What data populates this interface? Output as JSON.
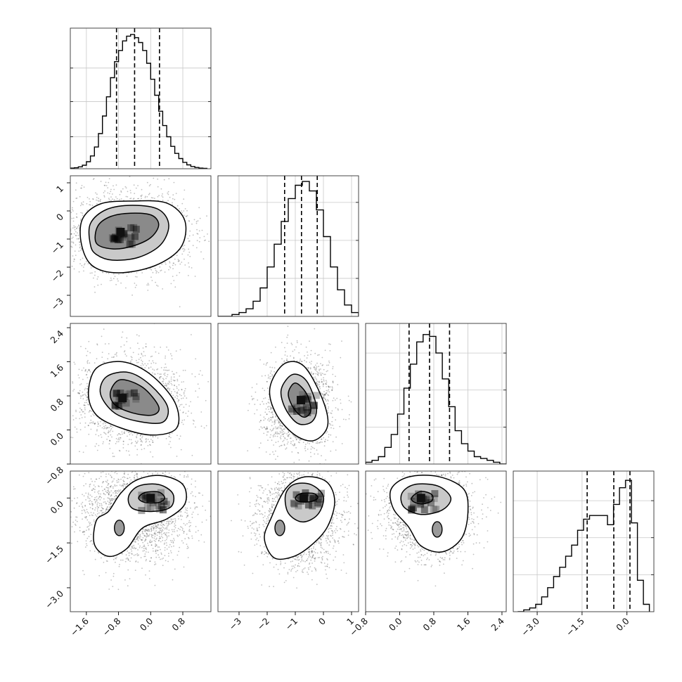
{
  "chart_data": {
    "type": "corner",
    "title": "",
    "parameters": [
      {
        "range": [
          -2.0,
          1.5
        ],
        "ticks": [
          -1.6,
          -0.8,
          0.0,
          0.8
        ],
        "tick_labels": [
          "−1.6",
          "−0.8",
          "0.0",
          "0.8"
        ],
        "quantiles": [
          -0.85,
          -0.4,
          0.22
        ],
        "hist_centers": [
          -1.95,
          -1.85,
          -1.75,
          -1.65,
          -1.55,
          -1.45,
          -1.35,
          -1.25,
          -1.15,
          -1.05,
          -0.95,
          -0.85,
          -0.75,
          -0.65,
          -0.55,
          -0.45,
          -0.35,
          -0.25,
          -0.15,
          -0.05,
          0.05,
          0.15,
          0.25,
          0.35,
          0.45,
          0.55,
          0.65,
          0.75,
          0.85,
          0.95,
          1.05,
          1.15,
          1.25,
          1.35
        ],
        "hist_values": [
          0.2,
          0.3,
          0.6,
          1.1,
          2.2,
          4.0,
          6.8,
          11.0,
          16.5,
          22.5,
          28.5,
          33.5,
          37.0,
          40.0,
          41.5,
          42.0,
          41.0,
          39.5,
          37.0,
          33.0,
          28.0,
          23.0,
          18.0,
          13.5,
          10.0,
          7.0,
          4.8,
          3.2,
          2.0,
          1.2,
          0.7,
          0.4,
          0.2,
          0.1
        ],
        "hist_ymax": 44,
        "hist_gridlines": [
          10,
          21,
          31.5
        ]
      },
      {
        "range": [
          -3.75,
          1.25
        ],
        "ticks": [
          -3,
          -2,
          -1,
          0,
          1
        ],
        "tick_labels": [
          "−3",
          "−2",
          "−1",
          "0",
          "1"
        ],
        "quantiles": [
          -1.38,
          -0.78,
          -0.22
        ],
        "hist_centers": [
          -3.625,
          -3.375,
          -3.125,
          -2.875,
          -2.625,
          -2.375,
          -2.125,
          -1.875,
          -1.625,
          -1.375,
          -1.125,
          -0.875,
          -0.625,
          -0.375,
          -0.125,
          0.125,
          0.375,
          0.625,
          0.875,
          1.125
        ],
        "hist_values": [
          0,
          0,
          0.5,
          1,
          2,
          4,
          7.5,
          13,
          19,
          25,
          31,
          34.5,
          35.5,
          33,
          28,
          21,
          13,
          7,
          3,
          1
        ],
        "hist_ymax": 37,
        "hist_gridlines": [
          10,
          20,
          30
        ]
      },
      {
        "range": [
          -0.8,
          2.5
        ],
        "ticks": [
          -0.8,
          0.0,
          0.8,
          1.6,
          2.4
        ],
        "tick_labels": [
          "−0.8",
          "0.0",
          "0.8",
          "1.6",
          "2.4"
        ],
        "quantiles": [
          0.22,
          0.7,
          1.17
        ],
        "hist_centers": [
          -0.725,
          -0.575,
          -0.425,
          -0.275,
          -0.125,
          0.025,
          0.175,
          0.325,
          0.475,
          0.625,
          0.775,
          0.925,
          1.075,
          1.225,
          1.375,
          1.525,
          1.675,
          1.825,
          1.975,
          2.125,
          2.275,
          2.425
        ],
        "hist_values": [
          0.5,
          1,
          2,
          4.5,
          8,
          13.5,
          20.5,
          27,
          33,
          35,
          34.5,
          30,
          23,
          15.5,
          9,
          5.5,
          3.5,
          2,
          1.5,
          1,
          0.5,
          0
        ],
        "hist_ymax": 38,
        "hist_gridlines": [
          10,
          20,
          30
        ]
      },
      {
        "range": [
          -3.8,
          0.9
        ],
        "ticks": [
          -3.0,
          -1.5,
          0.0
        ],
        "tick_labels": [
          "−3.0",
          "−1.5",
          "0.0"
        ],
        "quantiles": [
          -1.33,
          -0.44,
          0.1
        ],
        "hist_centers": [
          -3.55,
          -3.35,
          -3.15,
          -2.95,
          -2.75,
          -2.55,
          -2.35,
          -2.15,
          -1.95,
          -1.75,
          -1.55,
          -1.35,
          -1.15,
          -0.95,
          -0.75,
          -0.55,
          -0.35,
          -0.15,
          0.05,
          0.25,
          0.45,
          0.65
        ],
        "hist_values": [
          0,
          0.5,
          1,
          2,
          4,
          6.5,
          9.5,
          12,
          15,
          18,
          22,
          25,
          26,
          26,
          26,
          23.5,
          29,
          33.5,
          35.5,
          24,
          8.5,
          2
        ],
        "hist_ymax": 38,
        "hist_gridlines": [
          10,
          20,
          30
        ]
      }
    ],
    "pairs": [
      {
        "x": 0,
        "y": 1,
        "density_peak": [
          -0.75,
          -0.75
        ],
        "contours": [
          [
            [
              -1.35,
              -1.15
            ],
            [
              -1.32,
              -0.55
            ],
            [
              -1.0,
              -0.2
            ],
            [
              -0.5,
              -0.08
            ],
            [
              0.02,
              -0.15
            ],
            [
              0.2,
              -0.5
            ],
            [
              0.0,
              -0.95
            ],
            [
              -0.45,
              -1.25
            ],
            [
              -0.95,
              -1.35
            ]
          ],
          [
            [
              -1.5,
              -1.2
            ],
            [
              -1.5,
              -0.45
            ],
            [
              -1.1,
              0.05
            ],
            [
              -0.45,
              0.2
            ],
            [
              0.2,
              0.05
            ],
            [
              0.45,
              -0.5
            ],
            [
              0.25,
              -1.2
            ],
            [
              -0.3,
              -1.65
            ],
            [
              -0.95,
              -1.75
            ],
            [
              -1.35,
              -1.55
            ]
          ],
          [
            [
              -1.72,
              -1.2
            ],
            [
              -1.7,
              -0.3
            ],
            [
              -1.25,
              0.25
            ],
            [
              -0.45,
              0.35
            ],
            [
              0.4,
              0.28
            ],
            [
              0.85,
              -0.35
            ],
            [
              0.75,
              -1.3
            ],
            [
              0.1,
              -1.95
            ],
            [
              -0.8,
              -2.2
            ],
            [
              -1.45,
              -1.95
            ]
          ]
        ]
      },
      {
        "x": 0,
        "y": 2,
        "density_peak": [
          -0.7,
          0.75
        ],
        "contours": [
          [
            [
              -1.0,
              0.9
            ],
            [
              -0.75,
              1.18
            ],
            [
              -0.2,
              1.0
            ],
            [
              0.2,
              0.55
            ],
            [
              0.05,
              0.35
            ],
            [
              -0.45,
              0.4
            ],
            [
              -0.9,
              0.6
            ]
          ],
          [
            [
              -1.25,
              0.85
            ],
            [
              -1.1,
              1.25
            ],
            [
              -0.55,
              1.35
            ],
            [
              0.0,
              1.05
            ],
            [
              0.42,
              0.55
            ],
            [
              0.3,
              0.18
            ],
            [
              -0.3,
              0.2
            ],
            [
              -0.9,
              0.4
            ]
          ],
          [
            [
              -1.55,
              0.85
            ],
            [
              -1.35,
              1.45
            ],
            [
              -0.7,
              1.6
            ],
            [
              0.0,
              1.3
            ],
            [
              0.6,
              0.65
            ],
            [
              0.65,
              0.05
            ],
            [
              0.05,
              -0.12
            ],
            [
              -0.75,
              0.05
            ],
            [
              -1.35,
              0.35
            ]
          ]
        ]
      },
      {
        "x": 1,
        "y": 2,
        "density_peak": [
          -0.8,
          0.7
        ],
        "contours": [
          [
            [
              -1.25,
              0.85
            ],
            [
              -1.0,
              1.1
            ],
            [
              -0.6,
              0.85
            ],
            [
              -0.45,
              0.45
            ],
            [
              -0.7,
              0.3
            ],
            [
              -1.05,
              0.5
            ]
          ],
          [
            [
              -1.5,
              0.95
            ],
            [
              -1.1,
              1.3
            ],
            [
              -0.6,
              1.15
            ],
            [
              -0.25,
              0.55
            ],
            [
              -0.4,
              0.2
            ],
            [
              -0.9,
              0.15
            ],
            [
              -1.35,
              0.5
            ]
          ],
          [
            [
              -1.9,
              1.0
            ],
            [
              -1.4,
              1.55
            ],
            [
              -0.7,
              1.5
            ],
            [
              -0.05,
              0.75
            ],
            [
              0.15,
              0.1
            ],
            [
              -0.35,
              -0.25
            ],
            [
              -1.05,
              -0.1
            ],
            [
              -1.7,
              0.4
            ]
          ]
        ]
      },
      {
        "x": 0,
        "y": 3,
        "density_peak": [
          0.0,
          0.0
        ],
        "contours": [
          [
            [
              -0.3,
              0.0
            ],
            [
              -0.15,
              0.18
            ],
            [
              0.2,
              0.2
            ],
            [
              0.35,
              0.0
            ],
            [
              0.2,
              -0.15
            ],
            [
              -0.15,
              -0.15
            ]
          ],
          [
            [
              -0.55,
              0.05
            ],
            [
              -0.3,
              0.4
            ],
            [
              0.2,
              0.45
            ],
            [
              0.55,
              0.15
            ],
            [
              0.5,
              -0.3
            ],
            [
              0.05,
              -0.45
            ],
            [
              -0.45,
              -0.35
            ]
          ],
          [
            [
              -1.35,
              -0.75
            ],
            [
              -1.05,
              -0.45
            ],
            [
              -0.75,
              0.15
            ],
            [
              -0.35,
              0.6
            ],
            [
              0.25,
              0.75
            ],
            [
              0.8,
              0.45
            ],
            [
              0.85,
              -0.2
            ],
            [
              0.4,
              -0.7
            ],
            [
              -0.2,
              -1.0
            ],
            [
              -0.6,
              -1.7
            ],
            [
              -1.05,
              -1.95
            ],
            [
              -1.4,
              -1.55
            ]
          ]
        ]
      },
      {
        "x": 1,
        "y": 3,
        "density_peak": [
          -0.7,
          0.0
        ],
        "contours": [
          [
            [
              -1.0,
              0.0
            ],
            [
              -0.8,
              0.15
            ],
            [
              -0.35,
              0.15
            ],
            [
              -0.2,
              0.0
            ],
            [
              -0.45,
              -0.12
            ],
            [
              -0.85,
              -0.12
            ]
          ],
          [
            [
              -1.35,
              0.1
            ],
            [
              -1.05,
              0.45
            ],
            [
              -0.45,
              0.45
            ],
            [
              0.0,
              0.05
            ],
            [
              -0.2,
              -0.55
            ],
            [
              -0.75,
              -0.8
            ],
            [
              -1.25,
              -0.5
            ]
          ],
          [
            [
              -2.1,
              -1.35
            ],
            [
              -1.85,
              -0.65
            ],
            [
              -1.35,
              0.3
            ],
            [
              -0.7,
              0.7
            ],
            [
              0.1,
              0.55
            ],
            [
              0.4,
              -0.1
            ],
            [
              0.15,
              -0.95
            ],
            [
              -0.4,
              -1.55
            ],
            [
              -1.05,
              -1.95
            ],
            [
              -1.75,
              -2.0
            ]
          ]
        ]
      },
      {
        "x": 2,
        "y": 3,
        "density_peak": [
          0.5,
          0.0
        ],
        "contours": [
          [
            [
              0.3,
              0.05
            ],
            [
              0.5,
              0.22
            ],
            [
              0.75,
              0.12
            ],
            [
              0.75,
              -0.1
            ],
            [
              0.5,
              -0.2
            ],
            [
              0.3,
              -0.1
            ]
          ],
          [
            [
              0.05,
              0.15
            ],
            [
              0.35,
              0.45
            ],
            [
              0.9,
              0.4
            ],
            [
              1.2,
              0.0
            ],
            [
              1.0,
              -0.4
            ],
            [
              0.5,
              -0.55
            ],
            [
              0.1,
              -0.3
            ]
          ],
          [
            [
              -0.2,
              0.3
            ],
            [
              0.2,
              0.7
            ],
            [
              0.9,
              0.72
            ],
            [
              1.5,
              0.3
            ],
            [
              1.6,
              -0.5
            ],
            [
              1.45,
              -1.35
            ],
            [
              1.0,
              -1.8
            ],
            [
              0.5,
              -1.6
            ],
            [
              0.2,
              -0.95
            ],
            [
              -0.15,
              -0.35
            ]
          ]
        ]
      }
    ],
    "secondary_modes": [
      {
        "pair": 3,
        "center": [
          -0.78,
          -1.0
        ]
      },
      {
        "pair": 4,
        "center": [
          -1.55,
          -1.0
        ]
      },
      {
        "pair": 5,
        "center": [
          0.88,
          -1.05
        ]
      }
    ]
  }
}
